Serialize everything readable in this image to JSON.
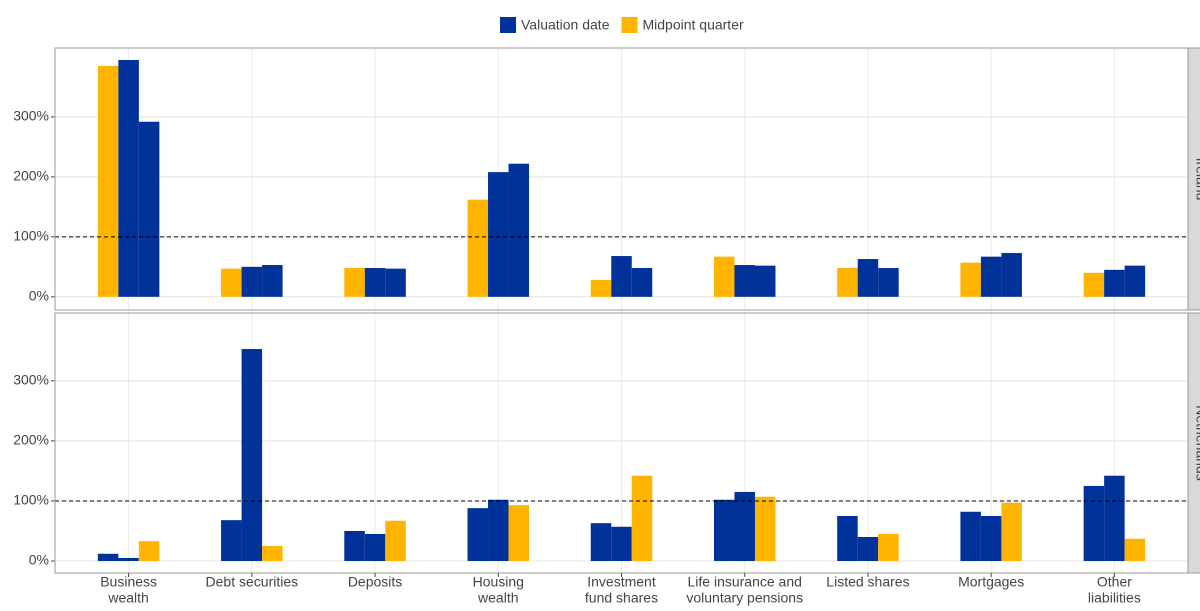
{
  "chart_data": {
    "type": "bar",
    "categories": [
      [
        "Business",
        "wealth"
      ],
      [
        "Debt securities"
      ],
      [
        "Deposits"
      ],
      [
        "Housing",
        "wealth"
      ],
      [
        "Investment",
        "fund shares"
      ],
      [
        "Life insurance and",
        "voluntary pensions"
      ],
      [
        "Listed shares"
      ],
      [
        "Mortgages"
      ],
      [
        "Other",
        "liabilities"
      ]
    ],
    "legend": [
      {
        "name": "Valuation date",
        "color": "#003299"
      },
      {
        "name": "Midpoint quarter",
        "color": "#ffb400"
      }
    ],
    "reference_line": 100,
    "grid": true,
    "panels": [
      {
        "title": "Ireland",
        "ylim": [
          -22,
          415
        ],
        "yticks": [
          {
            "value": 0,
            "label": "0%"
          },
          {
            "value": 100,
            "label": "100%"
          },
          {
            "value": 200,
            "label": "200%"
          },
          {
            "value": 300,
            "label": "300%"
          }
        ],
        "series": [
          {
            "values": [
              385,
              47,
              48,
              162,
              28,
              67,
              48,
              57,
              40
            ],
            "color": "#ffb400"
          },
          {
            "values": [
              395,
              50,
              48,
              208,
              68,
              53,
              63,
              67,
              45
            ],
            "color": "#003299"
          },
          {
            "values": [
              292,
              53,
              47,
              222,
              48,
              52,
              48,
              73,
              52
            ],
            "color": "#003299"
          }
        ]
      },
      {
        "title": "Netherlands",
        "ylim": [
          -20,
          413
        ],
        "yticks": [
          {
            "value": 0,
            "label": "0%"
          },
          {
            "value": 100,
            "label": "100%"
          },
          {
            "value": 200,
            "label": "200%"
          },
          {
            "value": 300,
            "label": "300%"
          }
        ],
        "series": [
          {
            "values": [
              12,
              68,
              50,
              88,
              63,
              102,
              75,
              82,
              125
            ],
            "color": "#003299"
          },
          {
            "values": [
              5,
              353,
              45,
              102,
              57,
              115,
              40,
              75,
              142
            ],
            "color": "#003299"
          },
          {
            "values": [
              33,
              25,
              67,
              93,
              142,
              107,
              45,
              97,
              37
            ],
            "color": "#ffb400"
          }
        ]
      }
    ]
  }
}
